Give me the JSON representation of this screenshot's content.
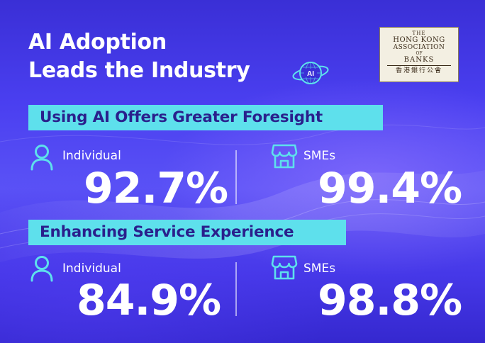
{
  "title": {
    "line1": "AI Adoption",
    "line2": "Leads the Industry"
  },
  "ai_icon_label": "AI",
  "logo": {
    "line1": "THE",
    "line2": "HONG KONG",
    "line3": "ASSOCIATION",
    "line4": "OF",
    "line5": "BANKS",
    "line6": "香港銀行公會"
  },
  "sections": [
    {
      "heading": "Using AI Offers Greater Foresight",
      "individual": {
        "label": "Individual",
        "value": "92.7%"
      },
      "smes": {
        "label": "SMEs",
        "value": "99.4%"
      }
    },
    {
      "heading": "Enhancing Service Experience",
      "individual": {
        "label": "Individual",
        "value": "84.9%"
      },
      "smes": {
        "label": "SMEs",
        "value": "98.8%"
      }
    }
  ],
  "icons": {
    "person": "person-icon",
    "shop": "storefront-icon",
    "globe": "ai-globe-icon"
  },
  "colors": {
    "accent": "#5ee0ec",
    "banner_text": "#2a1f8c",
    "background": "#4a3ff0",
    "icon": "#5ee0ec"
  }
}
